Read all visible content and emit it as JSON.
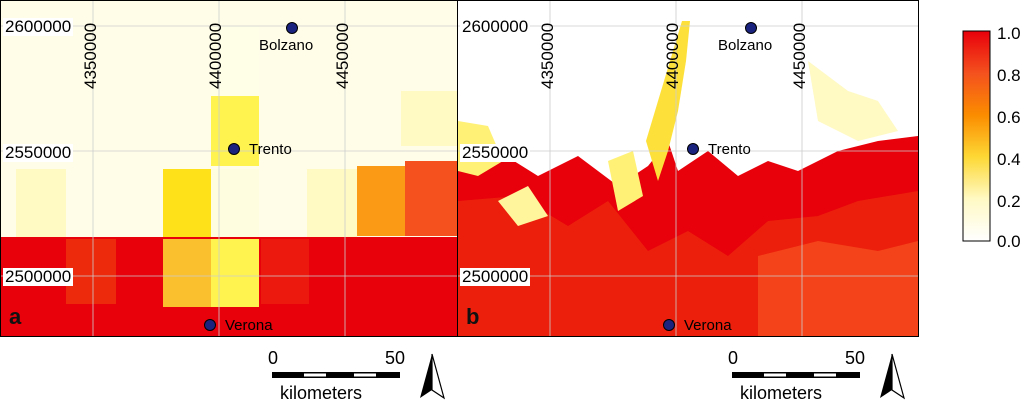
{
  "panels": [
    {
      "letter": "a",
      "cities": [
        "Bolzano",
        "Trento",
        "Verona"
      ],
      "y_labels": [
        "2600000",
        "2550000",
        "2500000"
      ],
      "x_labels": [
        "4350000",
        "4400000",
        "4450000"
      ]
    },
    {
      "letter": "b",
      "cities": [
        "Bolzano",
        "Trento",
        "Verona"
      ],
      "y_labels": [
        "2600000",
        "2550000",
        "2500000"
      ],
      "x_labels": [
        "4350000",
        "4400000",
        "4450000"
      ]
    }
  ],
  "scalebar": {
    "zero": "0",
    "fifty": "50",
    "unit": "kilometers"
  },
  "legend": {
    "ticks": [
      "1.0",
      "0.8",
      "0.6",
      "0.4",
      "0.2",
      "0.0"
    ],
    "colors": [
      "#e8000b",
      "#f4511e",
      "#fb8c00",
      "#fdd835",
      "#fff9c4",
      "#ffffff"
    ]
  },
  "colors": {
    "high": "#e8000b",
    "mid": "#f06a1a",
    "low": "#fff9e0",
    "city_dot": "#1a237e"
  }
}
